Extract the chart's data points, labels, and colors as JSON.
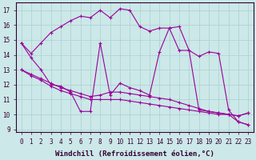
{
  "xlabel": "Windchill (Refroidissement éolien,°C)",
  "x": [
    0,
    1,
    2,
    3,
    4,
    5,
    6,
    7,
    8,
    9,
    10,
    11,
    12,
    13,
    14,
    15,
    16,
    17,
    18,
    19,
    20,
    21,
    22,
    23
  ],
  "line1": [
    14.8,
    14.1,
    14.8,
    15.5,
    15.9,
    16.3,
    16.6,
    16.5,
    17.0,
    16.5,
    17.1,
    17.0,
    15.9,
    15.6,
    15.8,
    15.8,
    14.3,
    14.3,
    10.3,
    10.2,
    10.1,
    10.0,
    9.5,
    9.3
  ],
  "line2": [
    14.8,
    13.8,
    13.0,
    12.0,
    11.9,
    11.5,
    10.2,
    10.2,
    14.8,
    11.3,
    12.1,
    11.8,
    11.6,
    11.3,
    14.2,
    15.8,
    15.9,
    14.3,
    13.9,
    14.2,
    14.1,
    10.3,
    9.5,
    9.3
  ],
  "line3": [
    13.0,
    12.6,
    12.3,
    11.9,
    11.6,
    11.4,
    11.2,
    11.0,
    11.0,
    11.0,
    11.0,
    10.9,
    10.8,
    10.7,
    10.6,
    10.5,
    10.4,
    10.3,
    10.2,
    10.1,
    10.0,
    10.0,
    9.9,
    10.1
  ],
  "line4": [
    13.0,
    12.7,
    12.4,
    12.1,
    11.8,
    11.6,
    11.4,
    11.2,
    11.3,
    11.5,
    11.5,
    11.4,
    11.3,
    11.2,
    11.1,
    11.0,
    10.8,
    10.6,
    10.4,
    10.2,
    10.1,
    10.0,
    9.9,
    10.1
  ],
  "ylim_min": 8.8,
  "ylim_max": 17.5,
  "xlim_min": -0.5,
  "xlim_max": 23.5,
  "xticks": [
    0,
    1,
    2,
    3,
    4,
    5,
    6,
    7,
    8,
    9,
    10,
    11,
    12,
    13,
    14,
    15,
    16,
    17,
    18,
    19,
    20,
    21,
    22,
    23
  ],
  "yticks": [
    9,
    10,
    11,
    12,
    13,
    14,
    15,
    16,
    17
  ],
  "line_color": "#990099",
  "background_color": "#cce8e8",
  "grid_color": "#aad0d0",
  "xlabel_fontsize": 6.5,
  "tick_fontsize": 5.5
}
